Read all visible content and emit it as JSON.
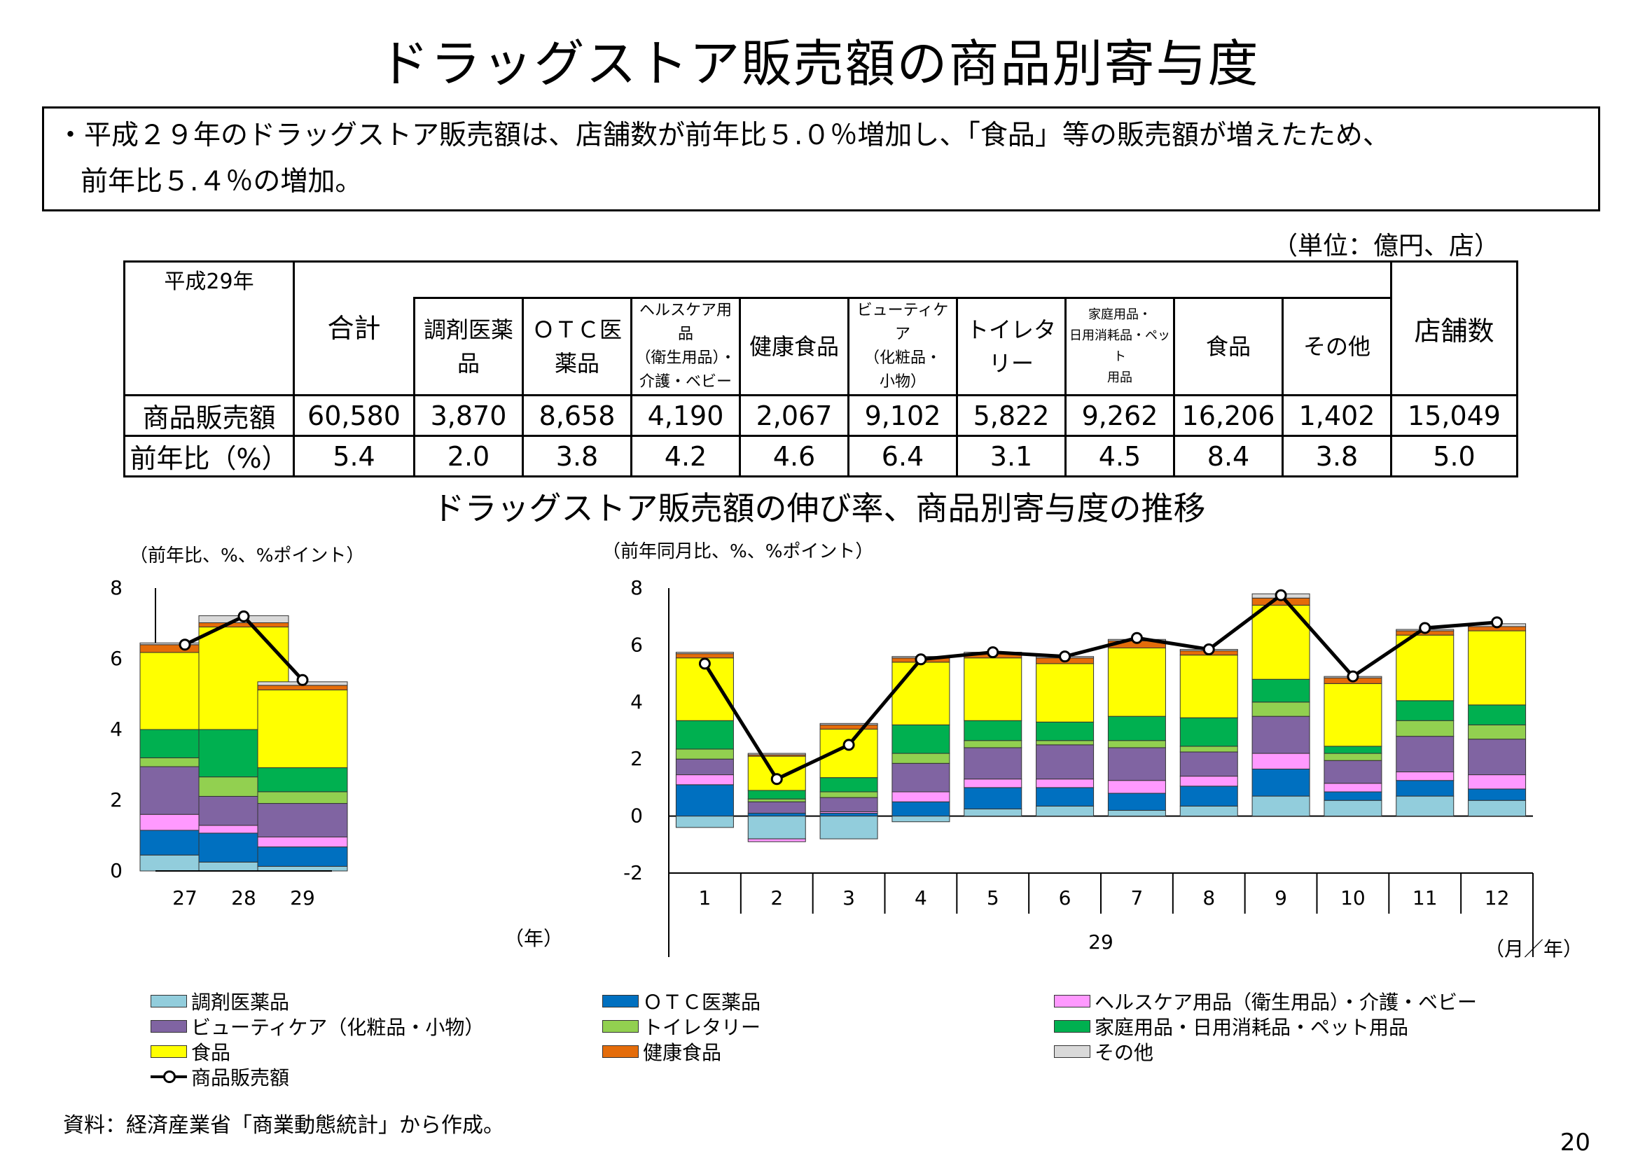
{
  "title": "ドラッグストア販売額の商品別寄与度",
  "summary": {
    "line1": "・平成２９年のドラッグストア販売額は、店舗数が前年比５.０％増加し、「食品」等の販売額が増えたため、",
    "line2": "前年比５.４％の増加。"
  },
  "unit_note": "（単位：億円、店）",
  "table": {
    "corner": "平成29年",
    "headers": [
      "合計",
      [
        "調剤医薬",
        "品"
      ],
      [
        "ＯＴＣ医",
        "薬品"
      ],
      [
        "ヘルスケア用品",
        "（衛生用品）・",
        "介護・ベビー"
      ],
      "健康食品",
      [
        "ビューティケア",
        "（化粧品・",
        "小物）"
      ],
      "トイレタリー",
      [
        "家庭用品・",
        "日用消耗品・ペット",
        "用品"
      ],
      "食品",
      "その他",
      "店舗数"
    ],
    "rows": [
      {
        "label": "商品販売額",
        "values": [
          "60,580",
          "3,870",
          "8,658",
          "4,190",
          "2,067",
          "9,102",
          "5,822",
          "9,262",
          "16,206",
          "1,402",
          "15,049"
        ]
      },
      {
        "label": "前年比（%）",
        "values": [
          "5.4",
          "2.0",
          "3.8",
          "4.2",
          "4.6",
          "6.4",
          "3.1",
          "4.5",
          "8.4",
          "3.8",
          "5.0"
        ]
      }
    ]
  },
  "subtitle": "ドラッグストア販売額の伸び率、商品別寄与度の推移",
  "colors": {
    "調剤医薬品": "#92cddc",
    "ＯＴＣ医薬品": "#0070c0",
    "ヘルスケア用品": "#ff99ff",
    "ビューティケア": "#8064a2",
    "トイレタリー": "#92d050",
    "家庭用品": "#00b050",
    "食品": "#ffff00",
    "健康食品": "#e46c0a",
    "その他": "#d9d9d9",
    "商品販売額": "#000000"
  },
  "chart_data": [
    {
      "type": "bar",
      "stacked": true,
      "unit_label": "（前年比、%、%ポイント）",
      "xlabel": "（年）",
      "categories": [
        "27",
        "28",
        "29"
      ],
      "ylim": [
        0,
        8
      ],
      "yticks": [
        "0",
        "2",
        "4",
        "6",
        "8"
      ],
      "series": [
        {
          "name": "調剤医薬品",
          "values": [
            0.45,
            0.25,
            0.13
          ]
        },
        {
          "name": "ＯＴＣ医薬品",
          "values": [
            0.7,
            0.82,
            0.55
          ]
        },
        {
          "name": "ヘルスケア用品（衛生用品）・介護・ベビー",
          "values": [
            0.45,
            0.22,
            0.28
          ]
        },
        {
          "name": "ビューティケア（化粧品・小物）",
          "values": [
            1.35,
            0.82,
            0.95
          ]
        },
        {
          "name": "トイレタリー",
          "values": [
            0.25,
            0.55,
            0.33
          ]
        },
        {
          "name": "家庭用品・日用消耗品・ペット用品",
          "values": [
            0.8,
            1.34,
            0.68
          ]
        },
        {
          "name": "食品",
          "values": [
            2.18,
            2.9,
            2.2
          ]
        },
        {
          "name": "健康食品",
          "values": [
            0.22,
            0.12,
            0.13
          ]
        },
        {
          "name": "その他",
          "values": [
            0.05,
            0.2,
            0.1
          ]
        }
      ],
      "line": {
        "name": "商品販売額",
        "values": [
          6.4,
          7.2,
          5.4
        ]
      }
    },
    {
      "type": "bar",
      "stacked": true,
      "unit_label": "（前年同月比、%、%ポイント）",
      "xlabel": "（月／年）",
      "year_label": "29",
      "categories": [
        "1",
        "2",
        "3",
        "4",
        "5",
        "6",
        "7",
        "8",
        "9",
        "10",
        "11",
        "12"
      ],
      "ylim": [
        -2,
        8
      ],
      "yticks": [
        "-2",
        "0",
        "2",
        "4",
        "6",
        "8"
      ],
      "series": [
        {
          "name": "調剤医薬品",
          "values": [
            -0.4,
            -0.8,
            -0.8,
            -0.2,
            0.25,
            0.35,
            0.2,
            0.35,
            0.7,
            0.55,
            0.7,
            0.55
          ]
        },
        {
          "name": "ＯＴＣ医薬品",
          "values": [
            1.1,
            0.1,
            0.1,
            0.5,
            0.75,
            0.65,
            0.6,
            0.7,
            0.95,
            0.3,
            0.55,
            0.4
          ]
        },
        {
          "name": "ヘルスケア用品（衛生用品）・介護・ベビー",
          "values": [
            0.35,
            -0.1,
            0.05,
            0.35,
            0.3,
            0.3,
            0.45,
            0.35,
            0.55,
            0.3,
            0.3,
            0.5
          ]
        },
        {
          "name": "ビューティケア（化粧品・小物）",
          "values": [
            0.55,
            0.4,
            0.5,
            1.0,
            1.1,
            1.2,
            1.15,
            0.85,
            1.3,
            0.8,
            1.25,
            1.25
          ]
        },
        {
          "name": "トイレタリー",
          "values": [
            0.35,
            0.1,
            0.2,
            0.35,
            0.25,
            0.15,
            0.25,
            0.2,
            0.5,
            0.25,
            0.55,
            0.5
          ]
        },
        {
          "name": "家庭用品・日用消耗品・ペット用品",
          "values": [
            1.0,
            0.3,
            0.5,
            1.0,
            0.7,
            0.65,
            0.85,
            1.0,
            0.8,
            0.25,
            0.7,
            0.7
          ]
        },
        {
          "name": "食品",
          "values": [
            2.2,
            1.2,
            1.7,
            2.2,
            2.2,
            2.05,
            2.4,
            2.2,
            2.6,
            2.2,
            2.3,
            2.6
          ]
        },
        {
          "name": "健康食品",
          "values": [
            0.15,
            0.05,
            0.15,
            0.15,
            0.15,
            0.2,
            0.25,
            0.15,
            0.25,
            0.2,
            0.15,
            0.15
          ]
        },
        {
          "name": "その他",
          "values": [
            0.05,
            0.05,
            0.05,
            0.05,
            0.05,
            0.05,
            0.05,
            0.05,
            0.15,
            0.05,
            0.05,
            0.1
          ]
        }
      ],
      "line": {
        "name": "商品販売額",
        "values": [
          5.35,
          1.3,
          2.5,
          5.5,
          5.75,
          5.6,
          6.25,
          5.85,
          7.75,
          4.9,
          6.6,
          6.8
        ]
      }
    }
  ],
  "legend": [
    {
      "label": "調剤医薬品",
      "color": "#92cddc"
    },
    {
      "label": "ＯＴＣ医薬品",
      "color": "#0070c0"
    },
    {
      "label": "ヘルスケア用品（衛生用品）・介護・ベビー",
      "color": "#ff99ff"
    },
    {
      "label": "ビューティケア（化粧品・小物）",
      "color": "#8064a2"
    },
    {
      "label": "トイレタリー",
      "color": "#92d050"
    },
    {
      "label": "家庭用品・日用消耗品・ペット用品",
      "color": "#00b050"
    },
    {
      "label": "食品",
      "color": "#ffff00"
    },
    {
      "label": "健康食品",
      "color": "#e46c0a"
    },
    {
      "label": "その他",
      "color": "#d9d9d9"
    },
    {
      "label": "商品販売額",
      "color": "#000000"
    }
  ],
  "source": "資料：経済産業省「商業動態統計」から作成。",
  "page_number": "20"
}
